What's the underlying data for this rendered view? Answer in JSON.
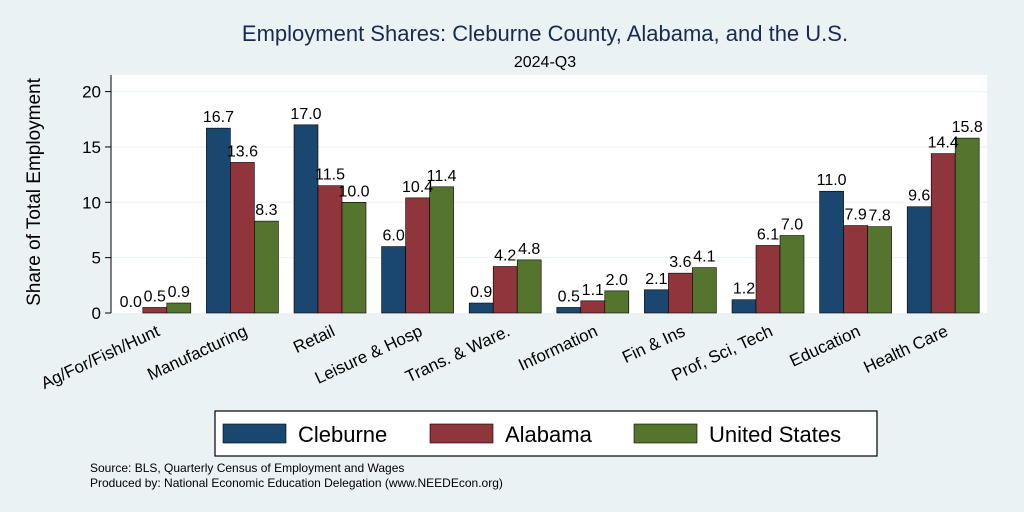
{
  "chart_data": {
    "type": "bar",
    "title": "Employment Shares: Cleburne County, Alabama, and the U.S.",
    "subtitle": "2024-Q3",
    "ylabel": "Share of Total Employment",
    "ylim": [
      0,
      21.5
    ],
    "yticks": [
      0,
      5,
      10,
      15,
      20
    ],
    "grid": true,
    "legend_position": "bottom",
    "categories": [
      "Ag/For/Fish/Hunt",
      "Manufacturing",
      "Retail",
      "Leisure & Hosp",
      "Trans. & Ware.",
      "Information",
      "Fin & Ins",
      "Prof, Sci, Tech",
      "Education",
      "Health Care"
    ],
    "series": [
      {
        "name": "Cleburne",
        "color": "#1a476f",
        "values": [
          0.0,
          16.7,
          17.0,
          6.0,
          0.9,
          0.5,
          2.1,
          1.2,
          11.0,
          9.6
        ],
        "labels": [
          "0.0",
          "16.7",
          "17.0",
          "6.0",
          "0.9",
          "0.5",
          "2.1",
          "1.2",
          "11.0",
          "9.6"
        ]
      },
      {
        "name": "Alabama",
        "color": "#90353b",
        "values": [
          0.5,
          13.6,
          11.5,
          10.4,
          4.2,
          1.1,
          3.6,
          6.1,
          7.9,
          14.4
        ],
        "labels": [
          "0.5",
          "13.6",
          "11.5",
          "10.4",
          "4.2",
          "1.1",
          "3.6",
          "6.1",
          "7.9",
          "14.4"
        ]
      },
      {
        "name": "United States",
        "color": "#55752f",
        "values": [
          0.9,
          8.3,
          10.0,
          11.4,
          4.8,
          2.0,
          4.1,
          7.0,
          7.8,
          15.8
        ],
        "labels": [
          "0.9",
          "8.3",
          "10.0",
          "11.4",
          "4.8",
          "2.0",
          "4.1",
          "7.0",
          "7.8",
          "15.8"
        ]
      }
    ],
    "notes": [
      "Source: BLS, Quarterly Census of Employment and Wages",
      "Produced by: National Economic Education Delegation (www.NEEDEcon.org)"
    ]
  }
}
